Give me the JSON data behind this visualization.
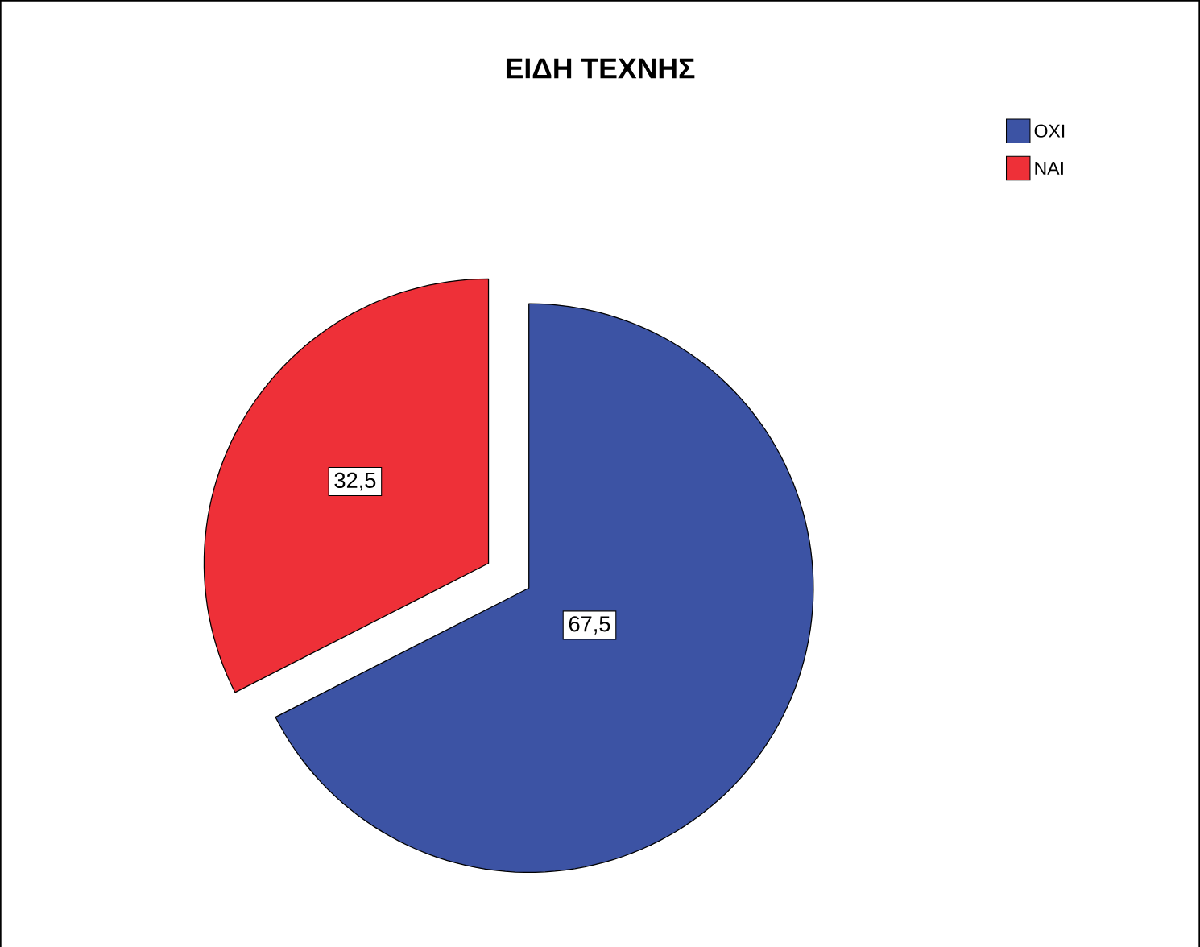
{
  "chart_data": {
    "type": "pie",
    "title": "ΕΙΔΗ ΤΕΧΝΗΣ",
    "categories": [
      "ΟΧΙ",
      "ΝΑΙ"
    ],
    "values": [
      67.5,
      32.5
    ],
    "value_labels": [
      "67,5",
      "32,5"
    ],
    "colors": [
      "#3c53a4",
      "#ee3038"
    ],
    "legend": "top right"
  }
}
